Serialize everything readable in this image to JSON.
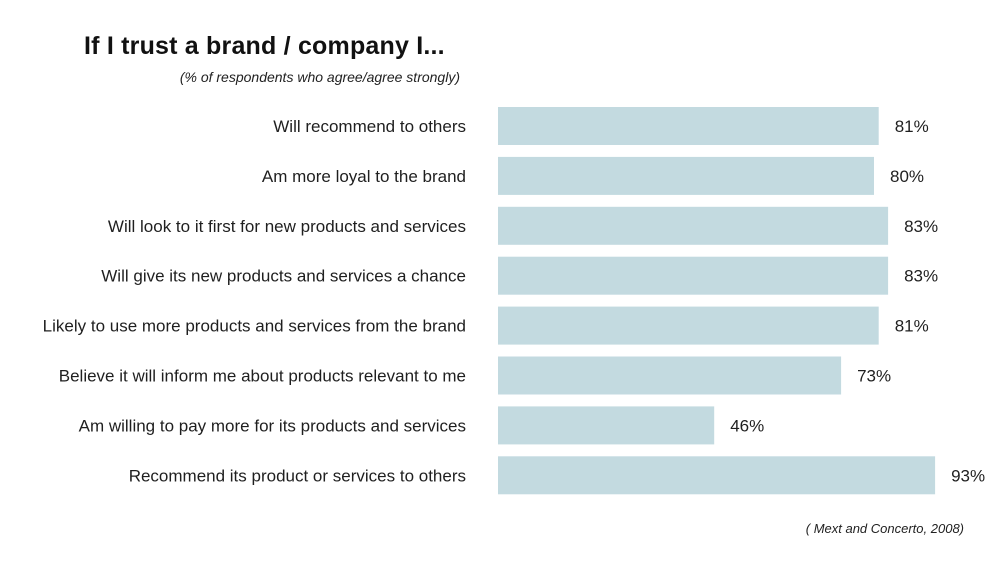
{
  "chart_data": {
    "type": "bar",
    "orientation": "horizontal",
    "title": "If I trust a brand / company I...",
    "subtitle": "(% of respondents who agree/agree strongly)",
    "source": "( Mext and Concerto, 2008)",
    "categories": [
      "Will recommend to others",
      "Am more loyal to the brand",
      "Will look to it first for new products and services",
      "Will give its new products and services a chance",
      "Likely to use more products and services from the brand",
      "Believe it will inform me about products relevant to me",
      "Am willing to pay more for its products and services",
      "Recommend its product or services to others"
    ],
    "values": [
      81,
      80,
      83,
      83,
      81,
      73,
      46,
      93
    ],
    "value_labels": [
      "81%",
      "80%",
      "83%",
      "83%",
      "81%",
      "73%",
      "46%",
      "93%"
    ],
    "bar_color": "#c3dae0",
    "grid": false,
    "legend": "none"
  }
}
